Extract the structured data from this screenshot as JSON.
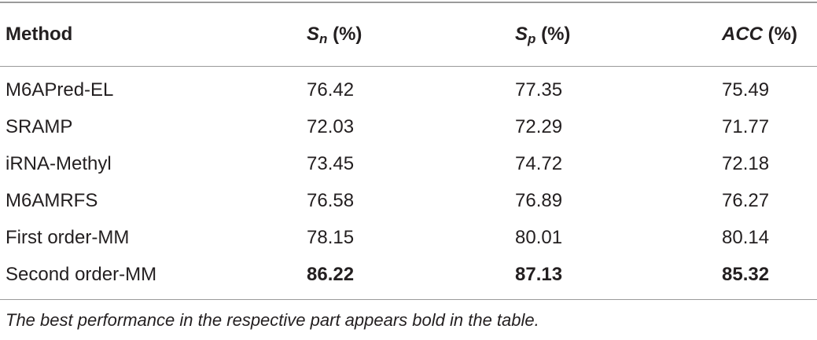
{
  "table": {
    "header": [
      {
        "symbol": "Method"
      },
      {
        "symbol": "S",
        "sub": "n",
        "unit": "(%)"
      },
      {
        "symbol": "S",
        "sub": "p",
        "unit": "(%)"
      },
      {
        "symbol": "ACC",
        "unit": "(%)"
      }
    ],
    "rows": [
      {
        "cells": [
          "M6APred-EL",
          "76.42",
          "77.35",
          "75.49"
        ]
      },
      {
        "cells": [
          "SRAMP",
          "72.03",
          "72.29",
          "71.77"
        ]
      },
      {
        "cells": [
          "iRNA-Methyl",
          "73.45",
          "74.72",
          "72.18"
        ]
      },
      {
        "cells": [
          "M6AMRFS",
          "76.58",
          "76.89",
          "76.27"
        ]
      },
      {
        "cells": [
          "First order-MM",
          "78.15",
          "80.01",
          "80.14"
        ]
      },
      {
        "cells": [
          "Second order-MM",
          "86.22",
          "87.13",
          "85.32"
        ],
        "bold": true
      }
    ],
    "footnote": "The best performance in the respective part appears bold in the table."
  }
}
